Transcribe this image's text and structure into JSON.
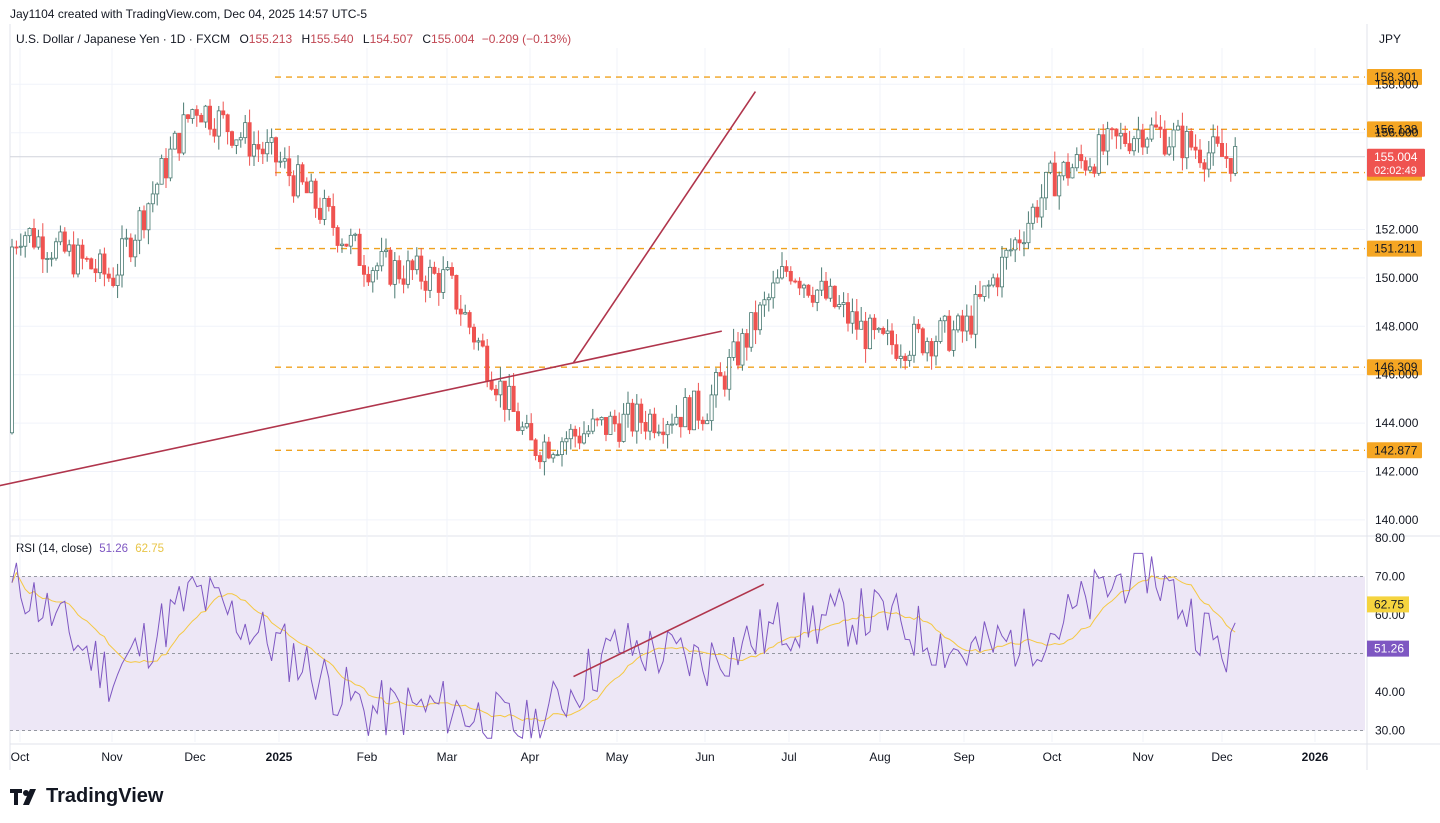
{
  "header": {
    "created_by": "Jay1104 created with TradingView.com, Dec 04, 2025 14:57 UTC-5",
    "symbol": "U.S. Dollar / Japanese Yen · 1D · FXCM",
    "open_label": "O",
    "open": "155.213",
    "high_label": "H",
    "high": "155.540",
    "low_label": "L",
    "low": "154.507",
    "close_label": "C",
    "close": "155.004",
    "change": "−0.209 (−0.13%)",
    "currency": "JPY"
  },
  "rsi_legend": {
    "label": "RSI (14, close)",
    "rsi": "51.26",
    "ma": "62.75"
  },
  "brand": {
    "name": "TradingView"
  },
  "colors": {
    "up": "#26a69a",
    "down": "#ef5350",
    "level": "#f0a21f",
    "trend": "#b0354c",
    "rsi": "#7e57c2",
    "rsi_ma": "#f5c842",
    "rsi_band": "#ede7f6"
  },
  "chart_data": [
    {
      "type": "candlestick",
      "title": "U.S. Dollar / Japanese Yen · 1D · FXCM",
      "x_tick_labels": [
        "Oct",
        "Nov",
        "Dec",
        "2025",
        "Feb",
        "Mar",
        "Apr",
        "May",
        "Jun",
        "Jul",
        "Aug",
        "Sep",
        "Oct",
        "Nov",
        "Dec",
        "2026"
      ],
      "y_axis_ticks": [
        "140.000",
        "142.000",
        "144.000",
        "146.000",
        "148.000",
        "150.000",
        "152.000",
        "156.000",
        "158.000"
      ],
      "ylim": [
        139.5,
        159.5
      ],
      "last_price": {
        "value": "155.004",
        "countdown": "02:02:49"
      },
      "horizontal_levels": [
        {
          "value": 158.301,
          "label": "158.301"
        },
        {
          "value": 156.138,
          "label": "156.138"
        },
        {
          "value": 154.352,
          "label": "154.352"
        },
        {
          "value": 151.211,
          "label": "151.211"
        },
        {
          "value": 146.309,
          "label": "146.309"
        },
        {
          "value": 142.877,
          "label": "142.877"
        }
      ],
      "trendlines": [
        {
          "from": [
            0.0,
            140.8
          ],
          "to": [
            9.2,
            147.8
          ]
        },
        {
          "from": [
            7.5,
            146.5
          ],
          "to": [
            9.6,
            157.7
          ]
        }
      ],
      "monthly_path": [
        {
          "month": "2024-09",
          "close": 143.6
        },
        {
          "month": "2024-10",
          "close": 152.0
        },
        {
          "month": "2024-11",
          "close": 150.0
        },
        {
          "month": "2024-12",
          "close": 157.2
        },
        {
          "month": "2025-01",
          "close": 154.8
        },
        {
          "month": "2025-02",
          "close": 150.6
        },
        {
          "month": "2025-03",
          "close": 149.9
        },
        {
          "month": "2025-04",
          "close": 143.0
        },
        {
          "month": "2025-05",
          "close": 144.0
        },
        {
          "month": "2025-06",
          "close": 144.6
        },
        {
          "month": "2025-07",
          "close": 150.5
        },
        {
          "month": "2025-08",
          "close": 147.2
        },
        {
          "month": "2025-09",
          "close": 147.8
        },
        {
          "month": "2025-10",
          "close": 154.1
        },
        {
          "month": "2025-11",
          "close": 156.2
        },
        {
          "month": "2025-12",
          "close": 155.0
        }
      ]
    },
    {
      "type": "line",
      "title": "RSI (14, close)",
      "y_axis_ticks": [
        "30.00",
        "40.00",
        "60.00",
        "70.00",
        "80.00"
      ],
      "ylim": [
        27,
        80
      ],
      "bands": [
        30,
        70
      ],
      "current": [
        {
          "name": "RSI",
          "value": "51.26"
        },
        {
          "name": "MA",
          "value": "62.75"
        }
      ],
      "monthly_rsi": [
        44,
        68,
        44,
        66,
        52,
        35,
        36,
        30,
        52,
        48,
        58,
        60,
        50,
        56,
        74,
        51
      ],
      "trendline": {
        "from": [
          7.5,
          44
        ],
        "to": [
          9.7,
          68
        ]
      }
    }
  ]
}
